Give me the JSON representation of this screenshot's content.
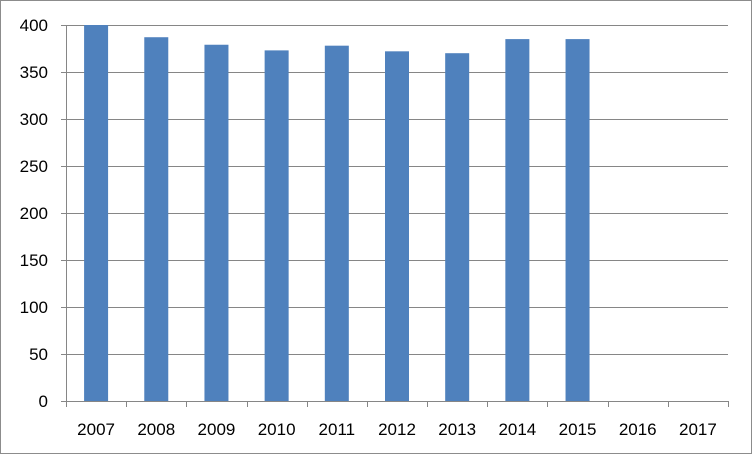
{
  "chart_data": {
    "type": "bar",
    "title": "",
    "xlabel": "",
    "ylabel": "",
    "categories": [
      "2007",
      "2008",
      "2009",
      "2010",
      "2011",
      "2012",
      "2013",
      "2014",
      "2015",
      "2016",
      "2017"
    ],
    "series": [
      {
        "values": [
          400,
          387,
          379,
          373,
          378,
          372,
          370,
          385,
          385,
          null,
          null
        ]
      }
    ],
    "ylim": [
      0,
      400
    ],
    "yticks": [
      0,
      50,
      100,
      150,
      200,
      250,
      300,
      350,
      400
    ],
    "grid": true,
    "legend": "none",
    "colors": {
      "bar": "#4f81bd",
      "gridline": "#868686",
      "axis": "#868686",
      "border": "#8c8c8c",
      "text": "#000000"
    }
  }
}
